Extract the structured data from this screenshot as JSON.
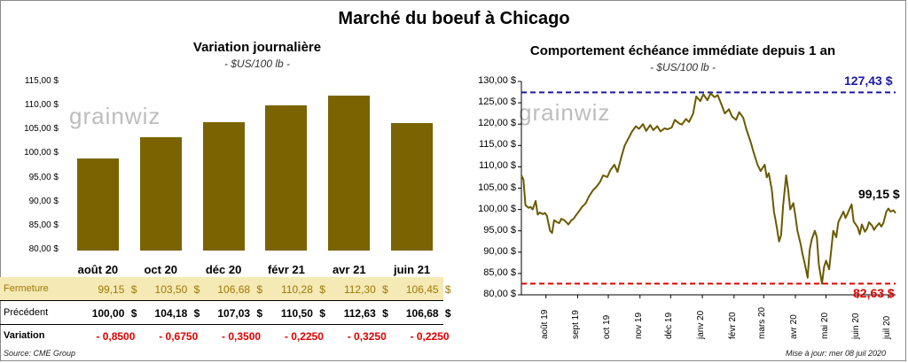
{
  "title": "Marché du boeuf à Chicago",
  "left_chart": {
    "title": "Variation journalière",
    "subtitle": "- $US/100 lb -",
    "watermark": "grainwiz",
    "y_ticks": [
      "115,00 $",
      "110,00 $",
      "105,00 $",
      "100,00 $",
      "95,00 $",
      "90,00 $",
      "85,00 $",
      "80,00 $"
    ]
  },
  "table": {
    "rows": [
      {
        "label": "Fermeture",
        "values": [
          "99,15",
          "103,50",
          "106,68",
          "110,28",
          "112,30",
          "106,45"
        ],
        "suffix": "$"
      },
      {
        "label": "Précédent",
        "values": [
          "100,00",
          "104,18",
          "107,03",
          "110,50",
          "112,63",
          "106,68"
        ],
        "suffix": "$"
      },
      {
        "label": "Variation",
        "values": [
          "- 0,8500",
          "- 0,6750",
          "- 0,3500",
          "- 0,2250",
          "- 0,3250",
          "- 0,2250"
        ],
        "suffix": ""
      }
    ]
  },
  "right_chart": {
    "title": "Comportement  échéance immédiate depuis 1 an",
    "subtitle": "- $US/100 lb -",
    "watermark": "grainwiz",
    "y_ticks": [
      "130,00 $",
      "125,00 $",
      "120,00 $",
      "115,00 $",
      "110,00 $",
      "105,00 $",
      "100,00 $",
      "95,00 $",
      "90,00 $",
      "85,00 $",
      "80,00 $"
    ],
    "x_ticks": [
      "août 19",
      "sept 19",
      "oct 19",
      "nov 19",
      "déc 19",
      "janv 20",
      "févr 20",
      "mars 20",
      "avr 20",
      "mai 20",
      "juin 20",
      "juil 20"
    ],
    "high_label": "127,43 $",
    "low_label": "82,63 $",
    "last_label": "99,15 $"
  },
  "footer": {
    "source": "Source: CME Group",
    "updated": "Mise à jour: mer 08 juil 2020"
  },
  "chart_data": [
    {
      "type": "bar",
      "title": "Variation journalière",
      "ylabel": "$US/100 lb",
      "categories": [
        "août 20",
        "oct 20",
        "déc 20",
        "févr 21",
        "avr 21",
        "juin 21"
      ],
      "values": [
        99.15,
        103.5,
        106.68,
        110.28,
        112.3,
        106.45
      ],
      "ylim": [
        80,
        115
      ],
      "colors": {
        "bar": "#7a6300"
      }
    },
    {
      "type": "line",
      "title": "Comportement  échéance immédiate depuis 1 an",
      "ylabel": "$US/100 lb",
      "ylim": [
        80,
        130
      ],
      "x_range": [
        "2019-07-08",
        "2020-07-08"
      ],
      "reference_lines": [
        {
          "label": "127,43 $",
          "value": 127.43,
          "color": "#1a1aa8"
        },
        {
          "label": "82,63 $",
          "value": 82.63,
          "color": "#e00000"
        }
      ],
      "colors": {
        "line": "#6b5a00"
      },
      "series": [
        {
          "points": [
            [
              "2019-07-08",
              108.0
            ],
            [
              "2019-07-10",
              107.0
            ],
            [
              "2019-07-12",
              101.0
            ],
            [
              "2019-07-15",
              100.4
            ],
            [
              "2019-07-17",
              100.6
            ],
            [
              "2019-07-19",
              100.0
            ],
            [
              "2019-07-22",
              102.0
            ],
            [
              "2019-07-24",
              98.8
            ],
            [
              "2019-07-26",
              99.3
            ],
            [
              "2019-07-29",
              98.9
            ],
            [
              "2019-07-31",
              99.2
            ],
            [
              "2019-08-02",
              98.5
            ],
            [
              "2019-08-05",
              95.0
            ],
            [
              "2019-08-07",
              94.5
            ],
            [
              "2019-08-09",
              97.5
            ],
            [
              "2019-08-12",
              97.0
            ],
            [
              "2019-08-14",
              96.8
            ],
            [
              "2019-08-16",
              97.8
            ],
            [
              "2019-08-19",
              97.5
            ],
            [
              "2019-08-21",
              97.0
            ],
            [
              "2019-08-23",
              96.5
            ],
            [
              "2019-08-26",
              97.5
            ],
            [
              "2019-08-28",
              97.8
            ],
            [
              "2019-08-30",
              98.5
            ],
            [
              "2019-09-03",
              99.8
            ],
            [
              "2019-09-05",
              100.5
            ],
            [
              "2019-09-09",
              101.5
            ],
            [
              "2019-09-12",
              103.0
            ],
            [
              "2019-09-16",
              104.5
            ],
            [
              "2019-09-19",
              105.2
            ],
            [
              "2019-09-23",
              106.5
            ],
            [
              "2019-09-26",
              108.0
            ],
            [
              "2019-09-30",
              107.6
            ],
            [
              "2019-10-03",
              109.2
            ],
            [
              "2019-10-07",
              110.5
            ],
            [
              "2019-10-10",
              108.8
            ],
            [
              "2019-10-14",
              112.5
            ],
            [
              "2019-10-17",
              115.0
            ],
            [
              "2019-10-21",
              116.8
            ],
            [
              "2019-10-24",
              118.2
            ],
            [
              "2019-10-28",
              119.5
            ],
            [
              "2019-10-31",
              118.9
            ],
            [
              "2019-11-04",
              120.0
            ],
            [
              "2019-11-07",
              118.4
            ],
            [
              "2019-11-11",
              119.8
            ],
            [
              "2019-11-14",
              118.6
            ],
            [
              "2019-11-18",
              119.5
            ],
            [
              "2019-11-21",
              118.3
            ],
            [
              "2019-11-25",
              119.0
            ],
            [
              "2019-11-28",
              118.8
            ],
            [
              "2019-12-02",
              119.2
            ],
            [
              "2019-12-05",
              121.0
            ],
            [
              "2019-12-09",
              120.2
            ],
            [
              "2019-12-12",
              119.9
            ],
            [
              "2019-12-16",
              121.2
            ],
            [
              "2019-12-19",
              120.5
            ],
            [
              "2019-12-23",
              122.5
            ],
            [
              "2019-12-26",
              126.5
            ],
            [
              "2019-12-30",
              125.4
            ],
            [
              "2020-01-02",
              127.0
            ],
            [
              "2020-01-06",
              125.6
            ],
            [
              "2020-01-09",
              127.2
            ],
            [
              "2020-01-13",
              126.3
            ],
            [
              "2020-01-16",
              126.8
            ],
            [
              "2020-01-20",
              124.4
            ],
            [
              "2020-01-23",
              122.5
            ],
            [
              "2020-01-27",
              123.5
            ],
            [
              "2020-01-30",
              121.8
            ],
            [
              "2020-02-03",
              121.0
            ],
            [
              "2020-02-06",
              122.8
            ],
            [
              "2020-02-10",
              121.5
            ],
            [
              "2020-02-13",
              118.8
            ],
            [
              "2020-02-17",
              116.0
            ],
            [
              "2020-02-20",
              113.5
            ],
            [
              "2020-02-24",
              110.5
            ],
            [
              "2020-02-27",
              109.0
            ],
            [
              "2020-03-02",
              110.5
            ],
            [
              "2020-03-04",
              107.5
            ],
            [
              "2020-03-06",
              108.5
            ],
            [
              "2020-03-09",
              104.5
            ],
            [
              "2020-03-11",
              99.5
            ],
            [
              "2020-03-13",
              97.0
            ],
            [
              "2020-03-16",
              92.5
            ],
            [
              "2020-03-18",
              94.0
            ],
            [
              "2020-03-20",
              101.0
            ],
            [
              "2020-03-23",
              108.0
            ],
            [
              "2020-03-25",
              104.5
            ],
            [
              "2020-03-27",
              100.0
            ],
            [
              "2020-03-30",
              101.5
            ],
            [
              "2020-04-01",
              98.5
            ],
            [
              "2020-04-03",
              95.0
            ],
            [
              "2020-04-06",
              92.0
            ],
            [
              "2020-04-08",
              89.5
            ],
            [
              "2020-04-10",
              87.5
            ],
            [
              "2020-04-13",
              84.0
            ],
            [
              "2020-04-15",
              90.5
            ],
            [
              "2020-04-17",
              93.0
            ],
            [
              "2020-04-20",
              95.0
            ],
            [
              "2020-04-22",
              93.5
            ],
            [
              "2020-04-24",
              87.0
            ],
            [
              "2020-04-27",
              82.6
            ],
            [
              "2020-04-29",
              86.5
            ],
            [
              "2020-05-01",
              88.0
            ],
            [
              "2020-05-04",
              86.0
            ],
            [
              "2020-05-06",
              90.5
            ],
            [
              "2020-05-08",
              95.0
            ],
            [
              "2020-05-11",
              93.5
            ],
            [
              "2020-05-13",
              97.0
            ],
            [
              "2020-05-15",
              98.0
            ],
            [
              "2020-05-18",
              99.5
            ],
            [
              "2020-05-20",
              98.0
            ],
            [
              "2020-05-22",
              99.0
            ],
            [
              "2020-05-26",
              101.2
            ],
            [
              "2020-05-28",
              97.2
            ],
            [
              "2020-06-01",
              95.8
            ],
            [
              "2020-06-03",
              94.2
            ],
            [
              "2020-06-05",
              96.5
            ],
            [
              "2020-06-08",
              94.8
            ],
            [
              "2020-06-10",
              95.5
            ],
            [
              "2020-06-12",
              97.0
            ],
            [
              "2020-06-15",
              96.2
            ],
            [
              "2020-06-17",
              95.2
            ],
            [
              "2020-06-19",
              96.0
            ],
            [
              "2020-06-22",
              96.8
            ],
            [
              "2020-06-24",
              96.0
            ],
            [
              "2020-06-26",
              96.8
            ],
            [
              "2020-06-29",
              99.5
            ],
            [
              "2020-07-01",
              100.2
            ],
            [
              "2020-07-03",
              99.5
            ],
            [
              "2020-07-06",
              99.8
            ],
            [
              "2020-07-08",
              99.15
            ]
          ]
        }
      ]
    }
  ]
}
